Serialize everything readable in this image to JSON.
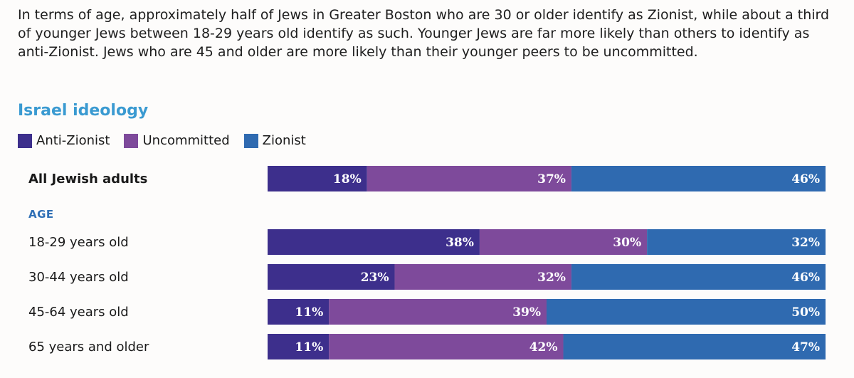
{
  "intro_text": "In terms of age, approximately half of Jews in Greater Boston who are 30 or older identify as Zionist, while about a third of younger Jews between 18-29 years old identify as such. Younger Jews are far more likely than others to identify as anti-Zionist. Jews who are 45 and older are more likely than their younger peers to be uncommitted.",
  "chart_data": {
    "type": "bar",
    "orientation": "horizontal",
    "stacked": true,
    "title": "Israel ideology",
    "section_label": "AGE",
    "categories": [
      "All Jewish adults",
      "18-29 years old",
      "30-44 years old",
      "45-64 years old",
      "65 years and older"
    ],
    "series": [
      {
        "name": "Anti-Zionist",
        "color": "#3d2f8c",
        "values": [
          18,
          38,
          23,
          11,
          11
        ]
      },
      {
        "name": "Uncommitted",
        "color": "#7e4a9b",
        "values": [
          37,
          30,
          32,
          39,
          42
        ]
      },
      {
        "name": "Zionist",
        "color": "#2f6ab0",
        "values": [
          46,
          32,
          46,
          50,
          47
        ]
      }
    ],
    "value_suffix": "%",
    "legend_position": "top-left"
  }
}
